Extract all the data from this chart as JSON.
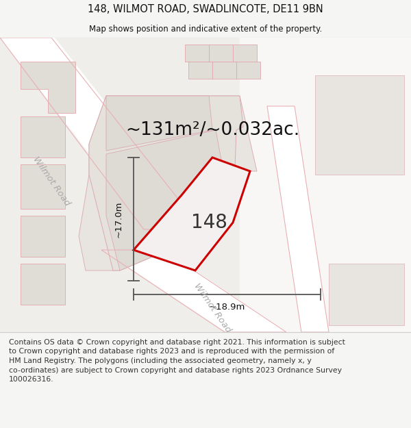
{
  "title": "148, WILMOT ROAD, SWADLINCOTE, DE11 9BN",
  "subtitle": "Map shows position and indicative extent of the property.",
  "area_label": "~131m²/~0.032ac.",
  "property_number": "148",
  "dim_height": "~17.0m",
  "dim_width": "~18.9m",
  "road_label_1": "Wilmot Road",
  "road_label_2": "Wilmot Road",
  "footer_line1": "Contains OS data © Crown copyright and database right 2021. This information is subject",
  "footer_line2": "to Crown copyright and database rights 2023 and is reproduced with the permission of",
  "footer_line3": "HM Land Registry. The polygons (including the associated geometry, namely x, y",
  "footer_line4": "co-ordinates) are subject to Crown copyright and database rights 2023 Ordnance Survey",
  "footer_line5": "100026316.",
  "bg_color": "#f5f5f3",
  "map_bg": "#f0eeeb",
  "white_area": "#ffffff",
  "road_fill": "#ffffff",
  "building_fill": "#e0ddd8",
  "building_outline": "#e8b0b5",
  "property_fill": "#f5f0f0",
  "property_outline": "#cc0000",
  "dim_line_color": "#555555",
  "title_color": "#111111",
  "footer_color": "#333333",
  "footer_fontsize": 7.8,
  "title_fontsize": 10.5,
  "subtitle_fontsize": 8.5,
  "area_fontsize": 19,
  "property_number_fontsize": 20,
  "road_label_fontsize": 9.5,
  "dim_fontsize": 9.5
}
